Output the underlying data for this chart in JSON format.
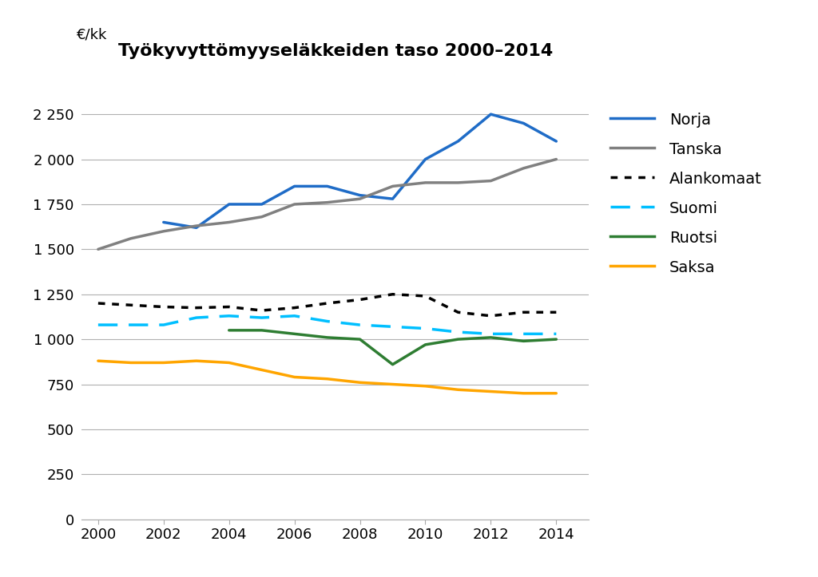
{
  "title": "Työkyvyttömyyseläkkeiden taso 2000–2014",
  "ylabel": "€/kk",
  "years": [
    2000,
    2001,
    2002,
    2003,
    2004,
    2005,
    2006,
    2007,
    2008,
    2009,
    2010,
    2011,
    2012,
    2013,
    2014
  ],
  "series": {
    "Norja": {
      "values": [
        null,
        null,
        1650,
        1620,
        1750,
        1750,
        1850,
        1850,
        1800,
        1780,
        2000,
        2100,
        2250,
        2200,
        2100
      ],
      "color": "#1f6cc7",
      "linestyle": "solid",
      "linewidth": 2.5
    },
    "Tanska": {
      "values": [
        1500,
        1560,
        1600,
        1630,
        1650,
        1680,
        1750,
        1760,
        1780,
        1850,
        1870,
        1870,
        1880,
        1950,
        2000
      ],
      "color": "#808080",
      "linestyle": "solid",
      "linewidth": 2.5
    },
    "Alankomaat": {
      "values": [
        1200,
        1190,
        1180,
        1175,
        1180,
        1160,
        1175,
        1200,
        1220,
        1250,
        1240,
        1150,
        1130,
        1150,
        1150
      ],
      "color": "#000000",
      "linestyle": "dotted",
      "linewidth": 2.5
    },
    "Suomi": {
      "values": [
        1080,
        1080,
        1080,
        1120,
        1130,
        1120,
        1130,
        1100,
        1080,
        1070,
        1060,
        1040,
        1030,
        1030,
        1030
      ],
      "color": "#00bfff",
      "linestyle": "dashed",
      "linewidth": 2.5
    },
    "Ruotsi": {
      "values": [
        null,
        null,
        null,
        null,
        1050,
        1050,
        1030,
        1010,
        1000,
        860,
        970,
        1000,
        1010,
        990,
        1000
      ],
      "color": "#2e7d32",
      "linestyle": "solid",
      "linewidth": 2.5
    },
    "Saksa": {
      "values": [
        880,
        870,
        870,
        880,
        870,
        830,
        790,
        780,
        760,
        750,
        740,
        720,
        710,
        700,
        700
      ],
      "color": "#ffa500",
      "linestyle": "solid",
      "linewidth": 2.5
    }
  },
  "xlim": [
    1999.5,
    2015.0
  ],
  "ylim": [
    0,
    2500
  ],
  "yticks": [
    0,
    250,
    500,
    750,
    1000,
    1250,
    1500,
    1750,
    2000,
    2250
  ],
  "xticks": [
    2000,
    2002,
    2004,
    2006,
    2008,
    2010,
    2012,
    2014
  ],
  "background_color": "#ffffff",
  "grid_color": "#b0b0b0",
  "legend_order": [
    "Norja",
    "Tanska",
    "Alankomaat",
    "Suomi",
    "Ruotsi",
    "Saksa"
  ],
  "title_fontsize": 16,
  "tick_fontsize": 13,
  "legend_fontsize": 14
}
